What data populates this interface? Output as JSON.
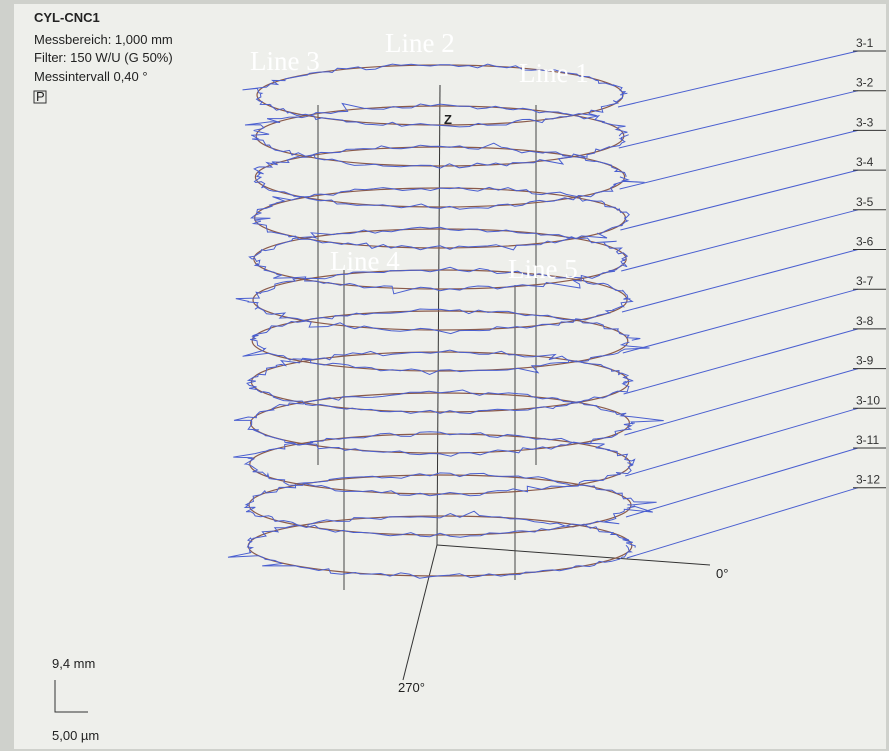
{
  "header": {
    "title": "CYL-CNC1",
    "lines": [
      "Messbereich: 1,000 mm",
      "Filter: 150 W/U (G 50%)",
      "Messintervall 0,40 °"
    ],
    "icon": "P"
  },
  "line_labels": [
    "Line 1",
    "Line 2",
    "Line 3",
    "Line 4",
    "Line 5"
  ],
  "axes": {
    "z": "Z",
    "x": "0°",
    "y": "270°"
  },
  "profiles": [
    "3-12",
    "3-11",
    "3-10",
    "3-9",
    "3-8",
    "3-7",
    "3-6",
    "3-5",
    "3-4",
    "3-3",
    "3-2",
    "3-1"
  ],
  "scale": {
    "vertical": "9,4 mm",
    "horizontal": "5,00 µm"
  }
}
